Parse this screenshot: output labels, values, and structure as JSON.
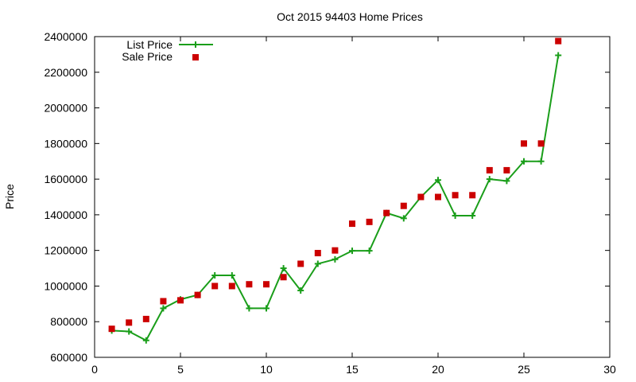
{
  "chart_data": {
    "type": "line",
    "title": "Oct 2015 94403 Home Prices",
    "xlabel": "",
    "ylabel": "Price",
    "xlim": [
      0,
      30
    ],
    "ylim": [
      600000,
      2400000
    ],
    "xticks": [
      0,
      5,
      10,
      15,
      20,
      25,
      30
    ],
    "yticks": [
      600000,
      800000,
      1000000,
      1200000,
      1400000,
      1600000,
      1800000,
      2000000,
      2200000,
      2400000
    ],
    "xtick_labels": [
      "0",
      "5",
      "10",
      "15",
      "20",
      "25",
      "30"
    ],
    "ytick_labels": [
      "600000",
      "800000",
      "1000000",
      "1200000",
      "1400000",
      "1600000",
      "1800000",
      "2000000",
      "2200000",
      "2400000"
    ],
    "grid": false,
    "legend_position": "top-left",
    "x": [
      1,
      2,
      3,
      4,
      5,
      6,
      7,
      8,
      9,
      10,
      11,
      12,
      13,
      14,
      15,
      16,
      17,
      18,
      19,
      20,
      21,
      22,
      23,
      24,
      25,
      26,
      27
    ],
    "series": [
      {
        "name": "List Price",
        "style": "linespoints",
        "color": "#1a9e1a",
        "marker": "plus",
        "values": [
          750000,
          745000,
          695000,
          875000,
          925000,
          950000,
          1060000,
          1060000,
          875000,
          875000,
          1100000,
          975000,
          1125000,
          1150000,
          1198000,
          1198000,
          1410000,
          1380000,
          1500000,
          1595000,
          1395000,
          1395000,
          1600000,
          1590000,
          1700000,
          1700000,
          2295000
        ]
      },
      {
        "name": "Sale Price",
        "style": "points",
        "color": "#cc0000",
        "marker": "square",
        "values": [
          760000,
          795000,
          815000,
          915000,
          920000,
          950000,
          1000000,
          1000000,
          1010000,
          1010000,
          1050000,
          1125000,
          1185000,
          1200000,
          1350000,
          1360000,
          1410000,
          1450000,
          1500000,
          1500000,
          1510000,
          1510000,
          1650000,
          1650000,
          1800000,
          1800000,
          2375000
        ]
      }
    ]
  }
}
